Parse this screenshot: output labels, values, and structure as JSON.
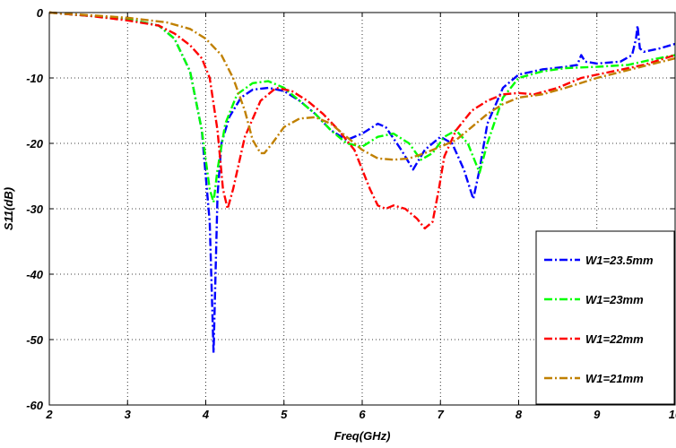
{
  "chart_data": {
    "type": "line",
    "title": "",
    "xlabel": "Freq(GHz)",
    "ylabel": "S11(dB)",
    "xlim": [
      2,
      10
    ],
    "ylim": [
      -60,
      0
    ],
    "xticks": [
      2,
      3,
      4,
      5,
      6,
      7,
      8,
      9,
      10
    ],
    "yticks": [
      0,
      -10,
      -20,
      -30,
      -40,
      -50,
      -60
    ],
    "xtick_labels": [
      "2",
      "3",
      "4",
      "5",
      "6",
      "7",
      "8",
      "9",
      "10"
    ],
    "ytick_labels": [
      "0",
      "-10",
      "-20",
      "-30",
      "-40",
      "-50",
      "-60"
    ],
    "grid": true,
    "legend_position": "bottom-right",
    "series": [
      {
        "name": "W1=23.5mm",
        "color": "#0000ff",
        "x": [
          2.0,
          2.5,
          3.0,
          3.4,
          3.6,
          3.8,
          3.95,
          4.05,
          4.1,
          4.15,
          4.2,
          4.3,
          4.45,
          4.6,
          4.8,
          5.0,
          5.2,
          5.4,
          5.6,
          5.8,
          6.0,
          6.2,
          6.3,
          6.5,
          6.65,
          6.8,
          7.0,
          7.15,
          7.3,
          7.42,
          7.5,
          7.6,
          7.8,
          8.0,
          8.3,
          8.6,
          8.75,
          8.8,
          8.85,
          9.0,
          9.3,
          9.45,
          9.5,
          9.52,
          9.55,
          9.6,
          9.8,
          10.0
        ],
        "y": [
          0,
          -0.5,
          -1.0,
          -2.0,
          -4.0,
          -9.0,
          -18.0,
          -32.0,
          -52.0,
          -28.0,
          -20.0,
          -16.0,
          -13.0,
          -11.8,
          -11.5,
          -12.0,
          -13.5,
          -15.5,
          -18.0,
          -19.5,
          -18.5,
          -17.0,
          -17.5,
          -21.0,
          -24.0,
          -21.0,
          -19.0,
          -20.0,
          -24.0,
          -28.5,
          -24.0,
          -17.0,
          -11.5,
          -9.5,
          -8.7,
          -8.3,
          -8.0,
          -6.5,
          -7.5,
          -7.8,
          -7.5,
          -6.5,
          -4.0,
          -2.0,
          -5.5,
          -6.0,
          -5.5,
          -4.8
        ]
      },
      {
        "name": "W1=23mm",
        "color": "#00ff00",
        "x": [
          2.0,
          2.5,
          3.0,
          3.4,
          3.6,
          3.8,
          3.95,
          4.05,
          4.1,
          4.15,
          4.25,
          4.4,
          4.6,
          4.8,
          5.0,
          5.2,
          5.4,
          5.6,
          5.8,
          6.0,
          6.2,
          6.4,
          6.6,
          6.75,
          6.9,
          7.05,
          7.2,
          7.35,
          7.5,
          7.6,
          7.8,
          8.0,
          8.3,
          8.6,
          9.0,
          9.4,
          9.7,
          10.0
        ],
        "y": [
          0,
          -0.5,
          -1.0,
          -2.0,
          -4.0,
          -9.0,
          -18.0,
          -27.0,
          -29.0,
          -24.0,
          -17.0,
          -12.5,
          -10.8,
          -10.5,
          -11.5,
          -13.5,
          -15.5,
          -18.0,
          -20.0,
          -20.5,
          -19.0,
          -18.5,
          -20.0,
          -22.5,
          -21.5,
          -19.0,
          -18.0,
          -20.0,
          -24.5,
          -20.0,
          -13.0,
          -10.0,
          -9.0,
          -8.5,
          -8.3,
          -8.0,
          -7.2,
          -6.5
        ]
      },
      {
        "name": "W1=22mm",
        "color": "#ff0000",
        "x": [
          2.0,
          2.5,
          3.0,
          3.4,
          3.6,
          3.8,
          3.95,
          4.05,
          4.15,
          4.22,
          4.28,
          4.35,
          4.5,
          4.7,
          4.9,
          5.1,
          5.3,
          5.5,
          5.7,
          5.9,
          6.0,
          6.1,
          6.2,
          6.3,
          6.4,
          6.55,
          6.7,
          6.8,
          6.9,
          6.98,
          7.05,
          7.2,
          7.4,
          7.6,
          7.8,
          8.0,
          8.2,
          8.5,
          8.8,
          9.2,
          9.6,
          10.0
        ],
        "y": [
          0,
          -0.5,
          -1.2,
          -2.0,
          -3.2,
          -5.0,
          -7.0,
          -10.0,
          -18.0,
          -27.0,
          -30.0,
          -27.0,
          -19.0,
          -13.5,
          -11.5,
          -12.0,
          -13.5,
          -15.5,
          -18.0,
          -21.0,
          -24.0,
          -27.0,
          -29.5,
          -30.0,
          -29.5,
          -30.0,
          -31.5,
          -33.0,
          -32.0,
          -27.0,
          -22.0,
          -18.0,
          -15.0,
          -13.5,
          -12.5,
          -12.3,
          -12.5,
          -11.5,
          -10.0,
          -9.0,
          -8.0,
          -6.5
        ]
      },
      {
        "name": "W1=21mm",
        "color": "#c08000",
        "x": [
          2.0,
          2.5,
          3.0,
          3.5,
          3.8,
          4.0,
          4.2,
          4.35,
          4.5,
          4.6,
          4.7,
          4.75,
          4.85,
          5.0,
          5.2,
          5.4,
          5.6,
          5.8,
          6.0,
          6.2,
          6.4,
          6.6,
          6.8,
          7.0,
          7.2,
          7.4,
          7.6,
          7.8,
          8.0,
          8.3,
          8.6,
          9.0,
          9.4,
          10.0
        ],
        "y": [
          0,
          -0.4,
          -0.8,
          -1.5,
          -2.5,
          -4.0,
          -6.5,
          -10.0,
          -15.0,
          -19.5,
          -21.5,
          -21.5,
          -20.0,
          -17.5,
          -16.2,
          -16.0,
          -17.0,
          -19.0,
          -21.0,
          -22.3,
          -22.5,
          -22.3,
          -21.5,
          -20.5,
          -19.5,
          -17.5,
          -15.5,
          -14.0,
          -13.0,
          -12.5,
          -11.5,
          -10.0,
          -8.8,
          -7.0
        ]
      }
    ]
  }
}
